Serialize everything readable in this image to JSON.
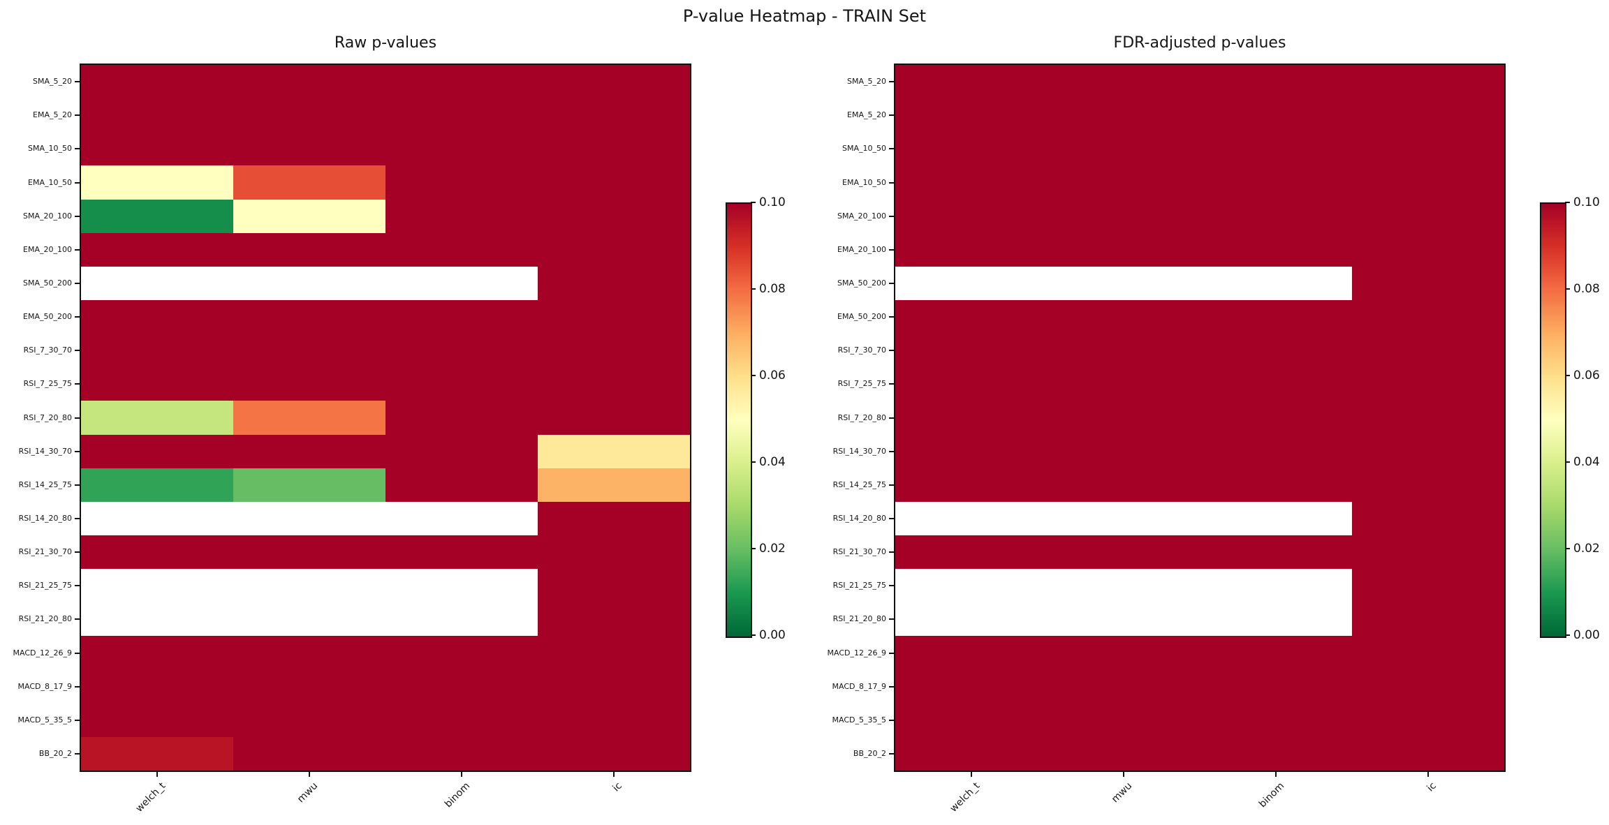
{
  "figure": {
    "title": "P-value Heatmap - TRAIN Set"
  },
  "chart_data": {
    "type": "heatmap",
    "colormap": "RdYlGn_r",
    "vmin": 0.0,
    "vmax": 0.1,
    "na_color": "#ffffff",
    "note": "Dark red cells represent p-values at or above the colormap maximum of 0.10 (clipped); white cells are missing values (NaN). Non-red cell values are estimated from the colorbar scale.",
    "rows": [
      "SMA_5_20",
      "EMA_5_20",
      "SMA_10_50",
      "EMA_10_50",
      "SMA_20_100",
      "EMA_20_100",
      "SMA_50_200",
      "EMA_50_200",
      "RSI_7_30_70",
      "RSI_7_25_75",
      "RSI_7_20_80",
      "RSI_14_30_70",
      "RSI_14_25_75",
      "RSI_14_20_80",
      "RSI_21_30_70",
      "RSI_21_25_75",
      "RSI_21_20_80",
      "MACD_12_26_9",
      "MACD_8_17_9",
      "MACD_5_35_5",
      "BB_20_2"
    ],
    "columns": [
      "welch_t",
      "mwu",
      "binom",
      "ic"
    ],
    "x_tick_rotation": 45,
    "panels": [
      {
        "title": "Raw p-values",
        "values": [
          [
            0.1,
            0.1,
            0.1,
            0.1
          ],
          [
            0.1,
            0.1,
            0.1,
            0.1
          ],
          [
            0.1,
            0.1,
            0.1,
            0.1
          ],
          [
            0.05,
            0.085,
            0.1,
            0.1
          ],
          [
            0.008,
            0.05,
            0.1,
            0.1
          ],
          [
            0.1,
            0.1,
            0.1,
            0.1
          ],
          [
            null,
            null,
            null,
            0.1
          ],
          [
            0.1,
            0.1,
            0.1,
            0.1
          ],
          [
            0.1,
            0.1,
            0.1,
            0.1
          ],
          [
            0.1,
            0.1,
            0.1,
            0.1
          ],
          [
            0.036,
            0.079,
            0.1,
            0.1
          ],
          [
            0.1,
            0.1,
            0.1,
            0.057
          ],
          [
            0.013,
            0.02,
            0.1,
            0.069
          ],
          [
            null,
            null,
            null,
            0.1
          ],
          [
            0.1,
            0.1,
            0.1,
            0.1
          ],
          [
            null,
            null,
            null,
            0.1
          ],
          [
            null,
            null,
            null,
            0.1
          ],
          [
            0.1,
            0.1,
            0.1,
            0.1
          ],
          [
            0.1,
            0.1,
            0.1,
            0.1
          ],
          [
            0.1,
            0.1,
            0.1,
            0.1
          ],
          [
            0.096,
            0.1,
            0.1,
            0.1
          ]
        ]
      },
      {
        "title": "FDR-adjusted p-values",
        "values": [
          [
            0.1,
            0.1,
            0.1,
            0.1
          ],
          [
            0.1,
            0.1,
            0.1,
            0.1
          ],
          [
            0.1,
            0.1,
            0.1,
            0.1
          ],
          [
            0.1,
            0.1,
            0.1,
            0.1
          ],
          [
            0.1,
            0.1,
            0.1,
            0.1
          ],
          [
            0.1,
            0.1,
            0.1,
            0.1
          ],
          [
            null,
            null,
            null,
            0.1
          ],
          [
            0.1,
            0.1,
            0.1,
            0.1
          ],
          [
            0.1,
            0.1,
            0.1,
            0.1
          ],
          [
            0.1,
            0.1,
            0.1,
            0.1
          ],
          [
            0.1,
            0.1,
            0.1,
            0.1
          ],
          [
            0.1,
            0.1,
            0.1,
            0.1
          ],
          [
            0.1,
            0.1,
            0.1,
            0.1
          ],
          [
            null,
            null,
            null,
            0.1
          ],
          [
            0.1,
            0.1,
            0.1,
            0.1
          ],
          [
            null,
            null,
            null,
            0.1
          ],
          [
            null,
            null,
            null,
            0.1
          ],
          [
            0.1,
            0.1,
            0.1,
            0.1
          ],
          [
            0.1,
            0.1,
            0.1,
            0.1
          ],
          [
            0.1,
            0.1,
            0.1,
            0.1
          ],
          [
            0.1,
            0.1,
            0.1,
            0.1
          ]
        ]
      }
    ],
    "colorbar": {
      "ticks": [
        "0.10",
        "0.08",
        "0.06",
        "0.04",
        "0.02",
        "0.00"
      ],
      "position": "right of each heatmap",
      "key_colors": {
        "low": "#006837",
        "mid": "#ffffbf",
        "high": "#a50026"
      }
    },
    "grid": false,
    "legend": false
  }
}
